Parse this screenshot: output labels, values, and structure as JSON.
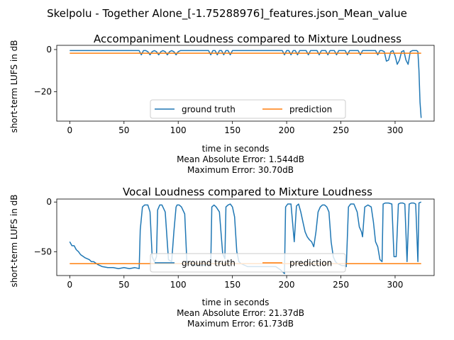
{
  "suptitle": "Skelpolu - Together Alone_[-1.75288976]_features.json_Mean_value",
  "chart_data": [
    {
      "type": "line",
      "title": "Accompaniment Loudness compared to Mixture Loudness",
      "xlabel": "time in seconds",
      "ylabel": "short-term LUFS in dB",
      "xlim": [
        -12,
        336
      ],
      "ylim": [
        -34,
        2
      ],
      "xticks": [
        0,
        50,
        100,
        150,
        200,
        250,
        300
      ],
      "yticks": [
        0,
        -20
      ],
      "legend": {
        "location": "lower-center",
        "ncol": 2
      },
      "series": [
        {
          "name": "ground truth",
          "color": "#1f77b4",
          "x": [
            0,
            20,
            40,
            60,
            64,
            66,
            68,
            70,
            72,
            74,
            76,
            78,
            80,
            82,
            84,
            86,
            88,
            90,
            92,
            94,
            96,
            98,
            100,
            102,
            104,
            128,
            130,
            132,
            134,
            136,
            138,
            140,
            142,
            144,
            146,
            148,
            150,
            152,
            154,
            196,
            198,
            200,
            202,
            204,
            206,
            208,
            210,
            212,
            214,
            216,
            218,
            220,
            222,
            224,
            226,
            228,
            230,
            232,
            234,
            236,
            238,
            240,
            242,
            244,
            246,
            248,
            250,
            252,
            254,
            256,
            258,
            260,
            262,
            264,
            266,
            268,
            270,
            272,
            274,
            276,
            278,
            280,
            282,
            284,
            286,
            288,
            290,
            292,
            294,
            296,
            298,
            300,
            302,
            304,
            306,
            308,
            310,
            312,
            314,
            316,
            318,
            320,
            321,
            322,
            323,
            324
          ],
          "values": [
            -0.5,
            -0.5,
            -0.5,
            -0.5,
            -0.5,
            -2.5,
            -0.5,
            -0.5,
            -1,
            -2.5,
            -1,
            -0.5,
            -1,
            -2.5,
            -1,
            -0.5,
            -1,
            -2.5,
            -1,
            -0.5,
            -1,
            -2.5,
            -1,
            -0.5,
            -0.5,
            -0.5,
            -2.5,
            -0.5,
            -0.5,
            -2.5,
            -0.5,
            -0.5,
            -2.5,
            -0.5,
            -0.5,
            -2.5,
            -0.5,
            -0.5,
            -0.5,
            -0.5,
            -2.5,
            -0.5,
            -0.5,
            -2.5,
            -0.5,
            -0.5,
            -2.5,
            -0.5,
            -0.5,
            -0.5,
            -0.5,
            -2.5,
            -0.5,
            -0.5,
            -0.5,
            -0.5,
            -2.5,
            -0.5,
            -0.5,
            -0.5,
            -2.5,
            -0.5,
            -0.5,
            -0.5,
            -2.5,
            -0.5,
            -0.5,
            -0.5,
            -0.5,
            -2.5,
            -0.5,
            -0.5,
            -0.5,
            -0.5,
            -0.5,
            -2.5,
            -0.5,
            -0.5,
            -0.5,
            -0.5,
            -0.5,
            -0.5,
            -0.5,
            -2.5,
            -0.5,
            -0.5,
            -1,
            -5.5,
            -5,
            -1,
            -0.5,
            -3,
            -7,
            -5,
            -1,
            -0.5,
            -5,
            -7,
            -1,
            -0.5,
            -0.5,
            -0.5,
            -1,
            -10,
            -25,
            -32.5
          ]
        },
        {
          "name": "prediction",
          "color": "#ff7f0e",
          "x": [
            0,
            324
          ],
          "values": [
            -1.75,
            -1.75
          ]
        }
      ]
    },
    {
      "type": "line",
      "title": "Vocal Loudness compared to Mixture Loudness",
      "xlabel": "time in seconds",
      "ylabel": "short-term LUFS in dB",
      "xlim": [
        -12,
        336
      ],
      "ylim": [
        -74,
        3
      ],
      "xticks": [
        0,
        50,
        100,
        150,
        200,
        250,
        300
      ],
      "yticks": [
        0,
        -50
      ],
      "legend": {
        "location": "lower-center",
        "ncol": 2
      },
      "series": [
        {
          "name": "ground truth",
          "color": "#1f77b4",
          "x": [
            0,
            2,
            4,
            6,
            8,
            10,
            14,
            18,
            20,
            22,
            26,
            30,
            35,
            40,
            45,
            50,
            55,
            60,
            64,
            65,
            67,
            69,
            72,
            74,
            76,
            78,
            80,
            81,
            83,
            85,
            88,
            91,
            94,
            96,
            98,
            99,
            101,
            103,
            106,
            108,
            110,
            112,
            114,
            116,
            130,
            131,
            133,
            135,
            138,
            141,
            143,
            144,
            146,
            148,
            150,
            152,
            154,
            156,
            158,
            160,
            162,
            164,
            190,
            194,
            196,
            198,
            199,
            201,
            204,
            207,
            209,
            211,
            213,
            215,
            217,
            219,
            221,
            223,
            225,
            227,
            229,
            231,
            233,
            235,
            237,
            239,
            241,
            243,
            245,
            247,
            249,
            251,
            253,
            255,
            257,
            259,
            262,
            265,
            267,
            269,
            270,
            272,
            275,
            278,
            280,
            282,
            284,
            286,
            288,
            289,
            291,
            294,
            297,
            299,
            301,
            303,
            305,
            307,
            309,
            311,
            313,
            315,
            317,
            319,
            321,
            322,
            324
          ],
          "values": [
            -40,
            -44,
            -44,
            -48,
            -50,
            -53,
            -56,
            -58,
            -60,
            -60,
            -63,
            -65,
            -66,
            -66,
            -67,
            -66,
            -67,
            -66,
            -67,
            -28,
            -5,
            -3,
            -3,
            -10,
            -55,
            -60,
            -55,
            -8,
            -3,
            -3,
            -10,
            -58,
            -60,
            -30,
            -5,
            -3,
            -3,
            -5,
            -12,
            -60,
            -62,
            -63,
            -63,
            -64,
            -63,
            -5,
            -3,
            -5,
            -10,
            -52,
            -57,
            -5,
            -3,
            -2,
            -5,
            -15,
            -50,
            -60,
            -62,
            -63,
            -64,
            -65,
            -65,
            -68,
            -70,
            -72,
            -5,
            -2,
            -2,
            -40,
            -4,
            -2,
            -10,
            -20,
            -30,
            -35,
            -38,
            -40,
            -45,
            -30,
            -10,
            -5,
            -3,
            -3,
            -5,
            -10,
            -40,
            -55,
            -60,
            -62,
            -63,
            -64,
            -64,
            -65,
            -5,
            -2,
            -2,
            -10,
            -25,
            -30,
            -35,
            -5,
            -3,
            -5,
            -20,
            -40,
            -45,
            -58,
            -60,
            -2,
            -1,
            -1,
            -2,
            -55,
            -55,
            -2,
            -1,
            -1,
            -2,
            -60,
            -2,
            -1,
            -1,
            -2,
            -60,
            -1,
            0
          ]
        },
        {
          "name": "prediction",
          "color": "#ff7f0e",
          "x": [
            0,
            324
          ],
          "values": [
            -62,
            -62
          ]
        }
      ]
    }
  ],
  "annotations": [
    {
      "mae": "Mean Absolute Error: 1.544dB",
      "max": "Maximum Error: 30.70dB"
    },
    {
      "mae": "Mean Absolute Error: 21.37dB",
      "max": "Maximum Error: 61.73dB"
    }
  ]
}
